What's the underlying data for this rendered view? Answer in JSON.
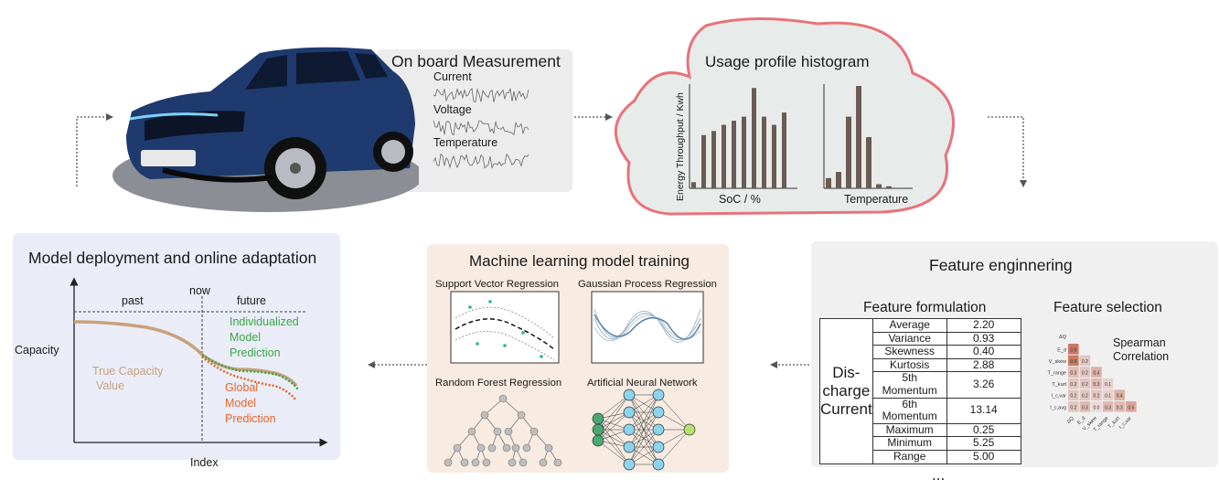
{
  "measurement": {
    "title": "On board Measurement",
    "signals": [
      "Current",
      "Voltage",
      "Temperature"
    ]
  },
  "usage": {
    "title": "Usage profile histogram",
    "ylabel": "Energy Throughput / Kwh",
    "soc_label": "SoC / %",
    "temp_label": "Temperature",
    "soc_values": [
      0.06,
      0.52,
      0.56,
      0.62,
      0.66,
      0.7,
      0.98,
      0.7,
      0.62,
      0.74
    ],
    "temp_values": [
      0.1,
      0.16,
      0.7,
      1.0,
      0.5,
      0.04,
      0.02,
      0.0
    ]
  },
  "features": {
    "title": "Feature enginnering",
    "formulation_title": "Feature formulation",
    "category": [
      "Dis-",
      "charge",
      "Current"
    ],
    "rows": [
      {
        "name": "Average",
        "value": "2.20"
      },
      {
        "name": "Variance",
        "value": "0.93"
      },
      {
        "name": "Skewness",
        "value": "0.40"
      },
      {
        "name": "Kurtosis",
        "value": "2.88"
      },
      {
        "name": "5th Momentum",
        "value": "3.26"
      },
      {
        "name": "6th Momentum",
        "value": "13.14"
      },
      {
        "name": "Maximum",
        "value": "0.25"
      },
      {
        "name": "Minimum",
        "value": "5.25"
      },
      {
        "name": "Range",
        "value": "5.00"
      }
    ],
    "selection_title": "Feature selection",
    "spearman_label": [
      "Spearman",
      "Correlation"
    ],
    "heatmap_labels": [
      "ΔQ",
      "E_d",
      "V_skew",
      "T_range",
      "T_kurt",
      "I_c,var",
      "I_c,avg"
    ],
    "heatmap_values": [
      [
        0.9
      ],
      [
        0.9,
        0.2
      ],
      [
        0.3,
        0.2,
        0.4
      ],
      [
        0.2,
        0.2,
        0.3,
        0.1
      ],
      [
        0.2,
        0.2,
        0.2,
        0.1,
        0.4
      ],
      [
        0.2,
        0.3,
        0.0,
        0.3,
        0.3,
        0.5
      ]
    ],
    "ellipsis": "..."
  },
  "ml": {
    "title": "Machine learning model training",
    "models": [
      "Support Vector Regression",
      "Gaussian Process Regression",
      "Random Forest Regression",
      "Artificial Neural Network"
    ]
  },
  "deploy": {
    "title": "Model deployment and online adaptation",
    "ylabel": "Capacity",
    "xlabel": "Index",
    "now_label": "now",
    "past_label": "past",
    "future_label": "future",
    "individualized_label": [
      "Individualized",
      "Model",
      "Prediction"
    ],
    "global_label": [
      "Global",
      "Model",
      "Prediction"
    ],
    "true_label": [
      "True Capacity",
      "Value"
    ]
  },
  "colors": {
    "cloud_border": "#e8737a",
    "cloud_fill": "#e7eceb",
    "hist_bar": "#6b5b53",
    "ml_panel": "#f7ebe2",
    "deploy_panel": "#eaedf8",
    "true_curve": "#c9a07a",
    "individualized": "#3aa845",
    "global": "#e8642a"
  }
}
